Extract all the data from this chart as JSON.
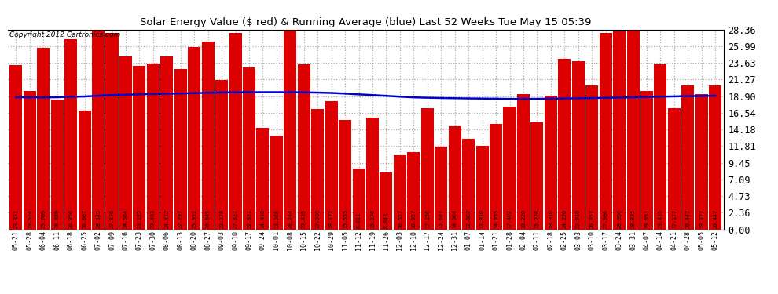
{
  "title": "Solar Energy Value ($ red) & Running Average (blue) Last 52 Weeks Tue May 15 05:39",
  "copyright": "Copyright 2012 Cartronics.com",
  "bar_color": "#dd0000",
  "line_color": "#0000cc",
  "bg_color": "#ffffff",
  "plot_bg_color": "#ffffff",
  "grid_color": "#aaaaaa",
  "ylim": [
    0,
    28.36
  ],
  "yticks": [
    0.0,
    2.36,
    4.73,
    7.09,
    9.45,
    11.81,
    14.18,
    16.54,
    18.9,
    21.27,
    23.63,
    25.99,
    28.36
  ],
  "categories": [
    "05-21",
    "05-28",
    "06-04",
    "06-11",
    "06-18",
    "06-25",
    "07-02",
    "07-09",
    "07-16",
    "07-23",
    "07-30",
    "08-06",
    "08-13",
    "08-20",
    "08-27",
    "09-03",
    "09-10",
    "09-17",
    "09-24",
    "10-01",
    "10-08",
    "10-15",
    "10-22",
    "10-29",
    "11-05",
    "11-12",
    "11-19",
    "11-26",
    "12-03",
    "12-10",
    "12-17",
    "12-24",
    "12-31",
    "01-07",
    "01-14",
    "01-21",
    "01-28",
    "02-04",
    "02-11",
    "02-18",
    "02-25",
    "03-03",
    "03-10",
    "03-17",
    "03-24",
    "03-31",
    "04-07",
    "04-14",
    "04-21",
    "04-28",
    "05-05",
    "05-12"
  ],
  "values": [
    23.331,
    19.624,
    25.709,
    18.389,
    26.956,
    16.807,
    28.145,
    27.876,
    24.564,
    23.185,
    23.493,
    24.472,
    22.797,
    25.912,
    26.649,
    21.178,
    27.837,
    22.931,
    14.418,
    13.268,
    28.244,
    23.435,
    17.03,
    18.172,
    15.555,
    8.611,
    15.878,
    8.043,
    10.557,
    10.957,
    17.156,
    11.687,
    14.664,
    12.802,
    11.81,
    14.955,
    17.402,
    19.22,
    15.228,
    18.91,
    24.22,
    23.91,
    20.357,
    27.906,
    28.056,
    28.835,
    19.651,
    23.435,
    17.177,
    20.447,
    19.177,
    20.447
  ],
  "running_avg": [
    18.75,
    18.72,
    18.72,
    18.74,
    18.8,
    18.85,
    18.95,
    19.05,
    19.1,
    19.15,
    19.2,
    19.25,
    19.28,
    19.32,
    19.38,
    19.42,
    19.44,
    19.46,
    19.46,
    19.46,
    19.46,
    19.44,
    19.4,
    19.35,
    19.26,
    19.15,
    19.05,
    18.94,
    18.82,
    18.72,
    18.67,
    18.63,
    18.6,
    18.57,
    18.55,
    18.53,
    18.5,
    18.5,
    18.51,
    18.53,
    18.56,
    18.59,
    18.62,
    18.66,
    18.7,
    18.74,
    18.78,
    18.82,
    18.86,
    18.9,
    18.92,
    18.95
  ]
}
